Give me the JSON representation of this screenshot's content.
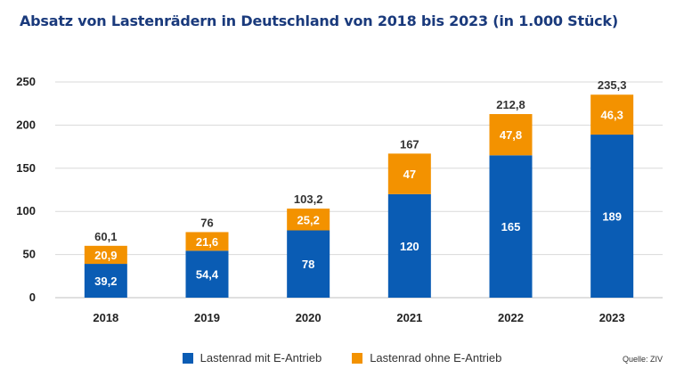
{
  "chart_data": {
    "type": "bar",
    "stacked": true,
    "title": "Absatz von Lastenrädern in Deutschland von 2018 bis 2023 (in 1.000 Stück)",
    "categories": [
      "2018",
      "2019",
      "2020",
      "2021",
      "2022",
      "2023"
    ],
    "series": [
      {
        "name": "Lastenrad mit E-Antrieb",
        "color": "#0a5cb4",
        "values": [
          39.2,
          54.4,
          78,
          120,
          165,
          189
        ],
        "labels": [
          "39,2",
          "54,4",
          "78",
          "120",
          "165",
          "189"
        ]
      },
      {
        "name": "Lastenrad ohne E-Antrieb",
        "color": "#f39200",
        "values": [
          20.9,
          21.6,
          25.2,
          47,
          47.8,
          46.3
        ],
        "labels": [
          "20,9",
          "21,6",
          "25,2",
          "47",
          "47,8",
          "46,3"
        ]
      }
    ],
    "totals": [
      "60,1",
      "76",
      "103,2",
      "167",
      "212,8",
      "235,3"
    ],
    "ylim": [
      0,
      250
    ],
    "yticks": [
      0,
      50,
      100,
      150,
      200,
      250
    ],
    "grid": true,
    "legend_position": "bottom",
    "source": "Quelle: ZIV"
  }
}
